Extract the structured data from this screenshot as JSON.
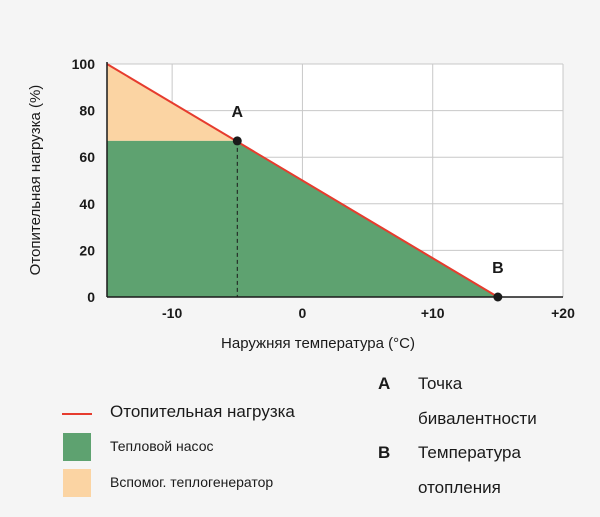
{
  "chart_data": {
    "type": "area",
    "xlabel": "Наружняя температура (°C)",
    "ylabel": "Отопительная нагрузка (%)",
    "xlim": [
      -15,
      20
    ],
    "ylim": [
      0,
      100
    ],
    "x_ticks": [
      {
        "value": -10,
        "label": "-10"
      },
      {
        "value": 0,
        "label": "0"
      },
      {
        "value": 10,
        "label": "+10"
      },
      {
        "value": 20,
        "label": "+20"
      }
    ],
    "y_ticks": [
      {
        "value": 0,
        "label": "0"
      },
      {
        "value": 20,
        "label": "20"
      },
      {
        "value": 40,
        "label": "40"
      },
      {
        "value": 60,
        "label": "60"
      },
      {
        "value": 80,
        "label": "80"
      },
      {
        "value": 100,
        "label": "100"
      }
    ],
    "grid": true,
    "load_line": {
      "x": [
        -15,
        15
      ],
      "y": [
        100,
        0
      ]
    },
    "bivalent_level": 67,
    "points": [
      {
        "label": "A",
        "x": -5,
        "y": 67
      },
      {
        "label": "B",
        "x": 15,
        "y": 0
      }
    ],
    "colors": {
      "load_line": "#e63c2e",
      "heat_pump": "#5ea270",
      "aux": "#fbd4a3",
      "grid": "#c8c8c8",
      "axis": "#1a1a1a",
      "marker": "#1a1a1a"
    }
  },
  "legend": {
    "load": "Отопительная нагрузка",
    "heat_pump": "Тепловой насос",
    "aux": "Вспомог. теплогенератор"
  },
  "notes": {
    "a_letter": "A",
    "a_line1": "Точка",
    "a_line2": "бивалентности",
    "b_letter": "B",
    "b_line1": "Температура",
    "b_line2": "отопления"
  }
}
